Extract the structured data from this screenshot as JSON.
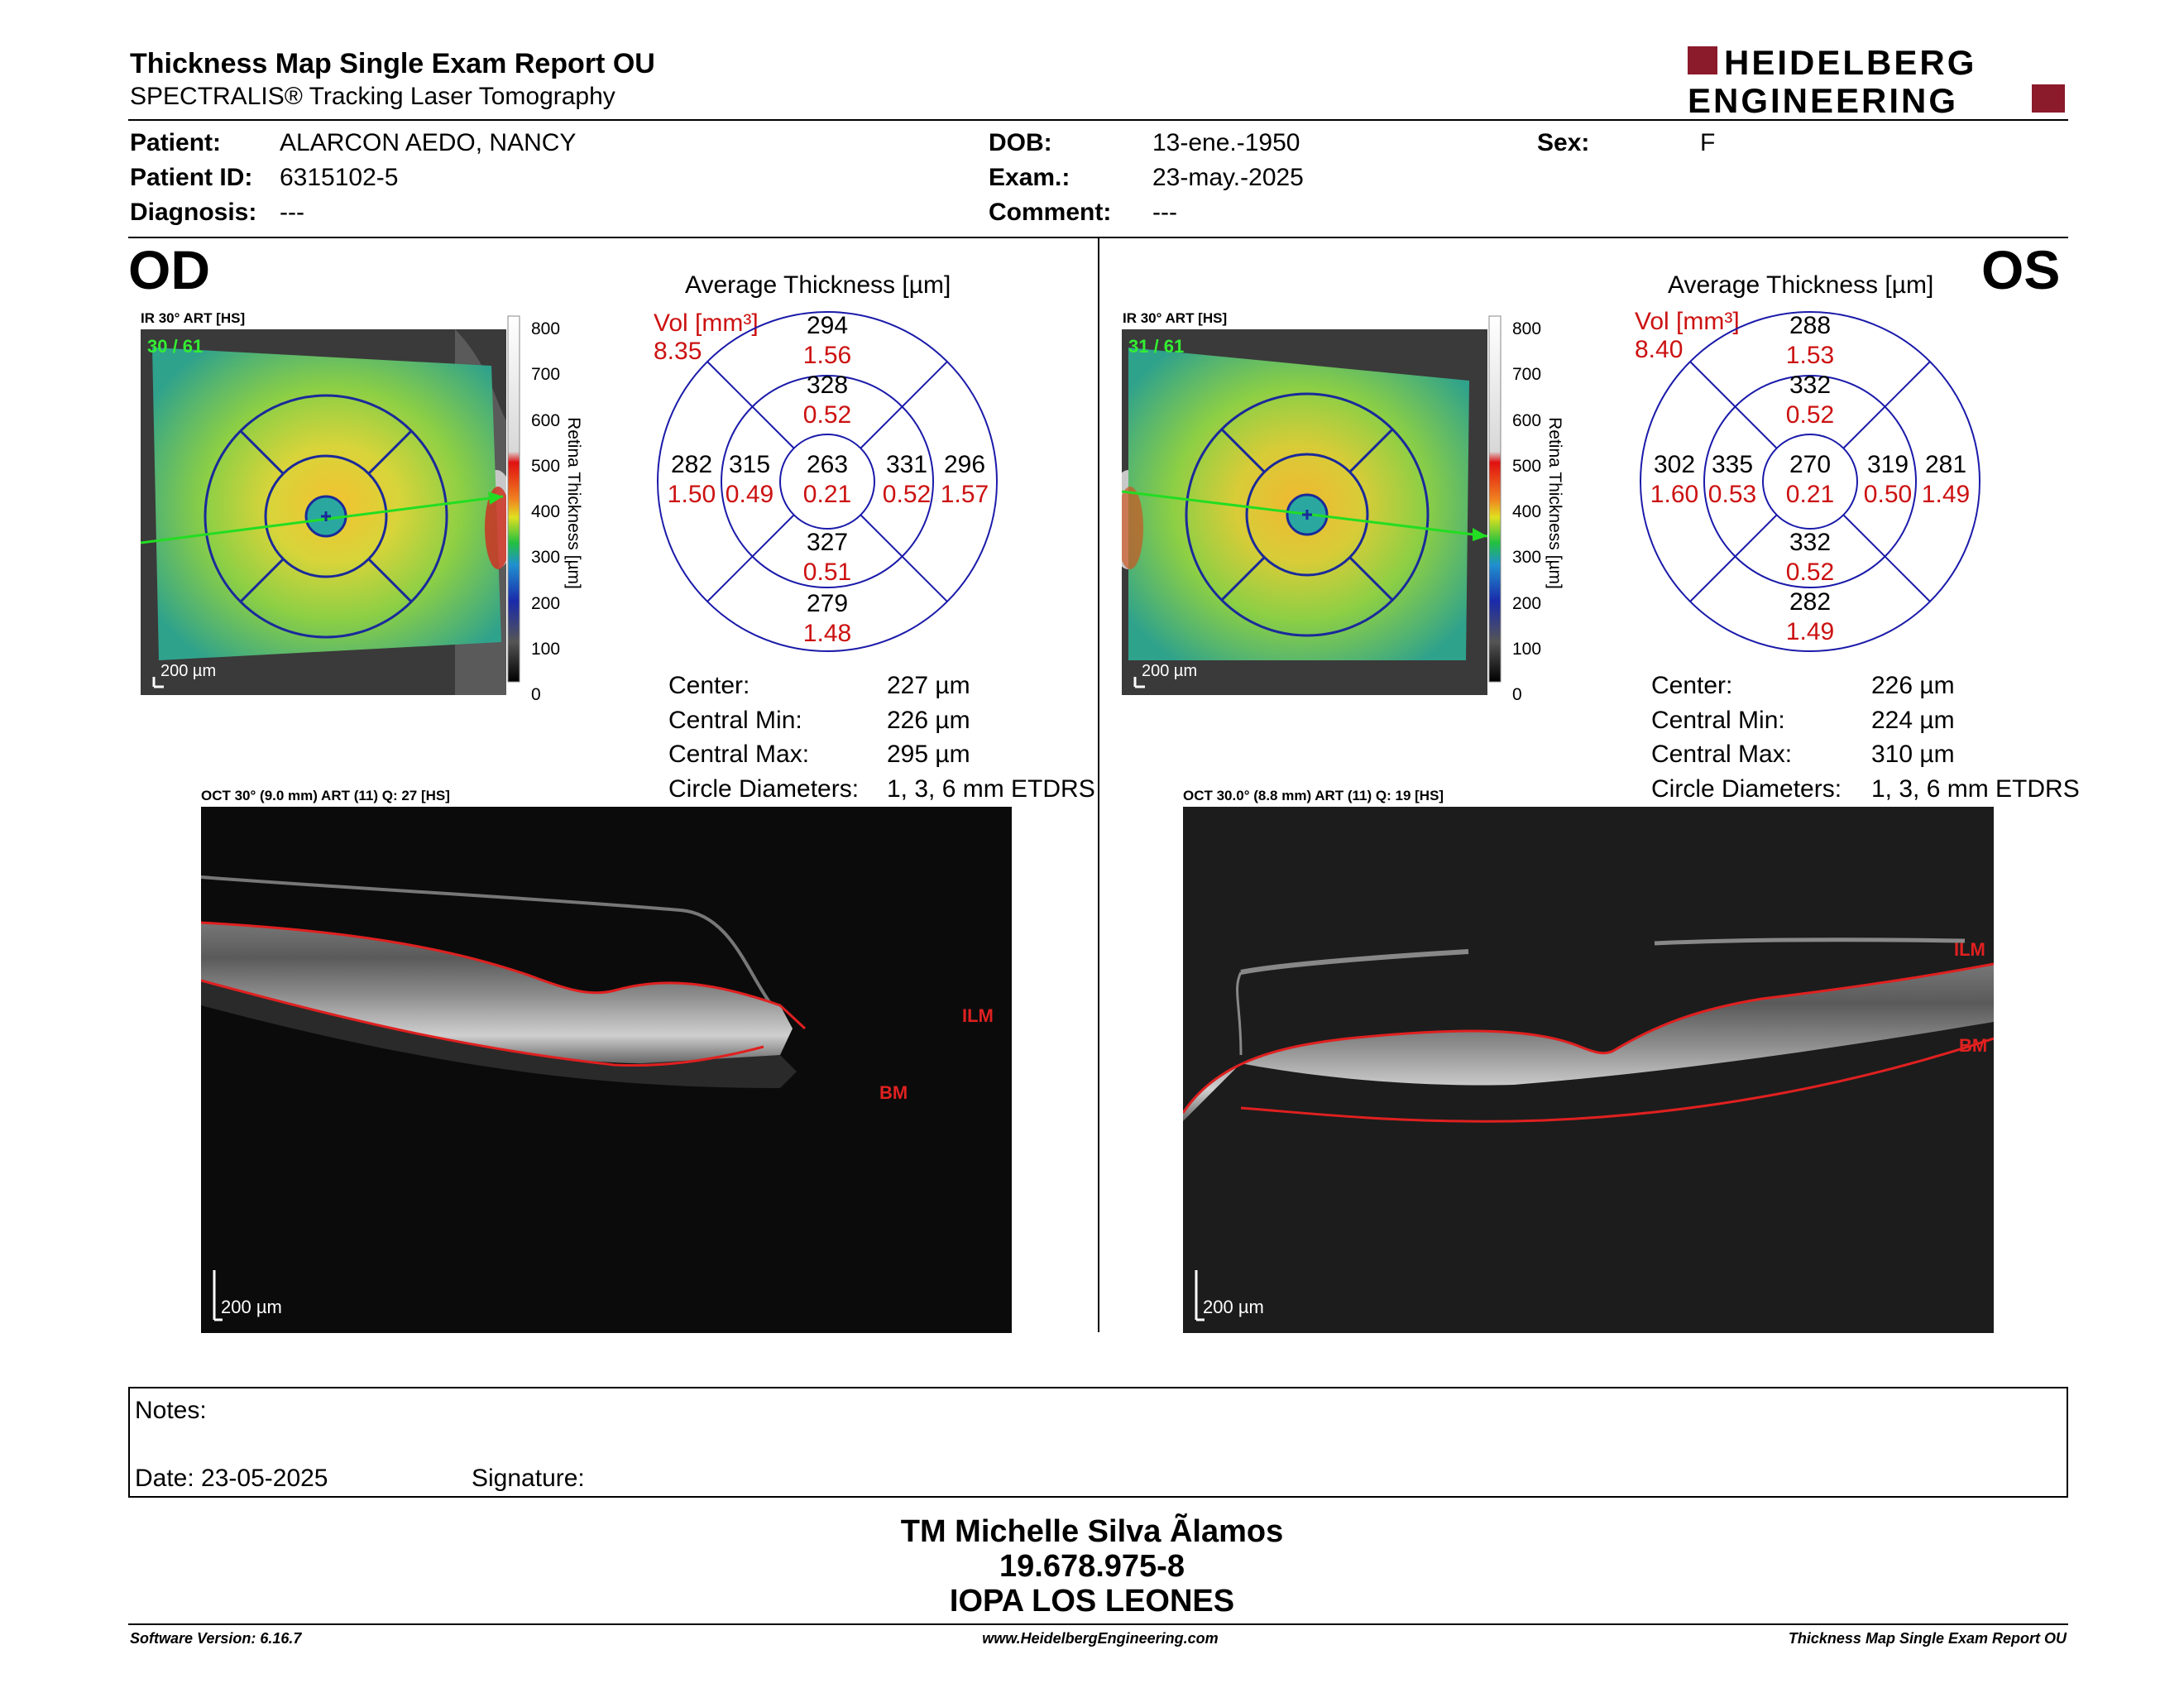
{
  "header": {
    "title": "Thickness Map Single Exam Report OU",
    "subtitle": "SPECTRALIS® Tracking Laser Tomography",
    "logo_line1": "HEIDELBERG",
    "logo_line2": "ENGINEERING",
    "brand_color": "#8b1a2b"
  },
  "patient": {
    "patient_label": "Patient:",
    "patient_value": "ALARCON AEDO, NANCY",
    "id_label": "Patient ID:",
    "id_value": "6315102-5",
    "diag_label": "Diagnosis:",
    "diag_value": "---",
    "dob_label": "DOB:",
    "dob_value": "13-ene.-1950",
    "exam_label": "Exam.:",
    "exam_value": "23-may.-2025",
    "comment_label": "Comment:",
    "comment_value": "---",
    "sex_label": "Sex:",
    "sex_value": "F"
  },
  "scale": {
    "ticks": [
      "800",
      "700",
      "600",
      "500",
      "400",
      "300",
      "200",
      "100",
      "0"
    ],
    "label": "Retina Thickness [µm]"
  },
  "od": {
    "eye": "OD",
    "ir_label": "IR 30° ART [HS]",
    "frames": "30 / 61",
    "scalebar": "200 µm",
    "avg_title": "Average Thickness [µm]",
    "vol_label": "Vol [mm³]",
    "vol_value": "8.35",
    "etdrs": {
      "center": [
        "263",
        "0.21"
      ],
      "inner_sup": [
        "328",
        "0.52"
      ],
      "inner_inf": [
        "327",
        "0.51"
      ],
      "inner_left": [
        "315",
        "0.49"
      ],
      "inner_right": [
        "331",
        "0.52"
      ],
      "outer_sup": [
        "294",
        "1.56"
      ],
      "outer_inf": [
        "279",
        "1.48"
      ],
      "outer_left": [
        "282",
        "1.50"
      ],
      "outer_right": [
        "296",
        "1.57"
      ]
    },
    "stats": [
      [
        "Center:",
        "227 µm"
      ],
      [
        "Central Min:",
        "226 µm"
      ],
      [
        "Central Max:",
        "295 µm"
      ],
      [
        "Circle Diameters:",
        "1, 3, 6 mm ETDRS"
      ]
    ],
    "oct_label": "OCT 30° (9.0 mm) ART (11) Q: 27 [HS]",
    "ilm": "ILM",
    "bm": "BM",
    "oct_scalebar": "200 µm"
  },
  "os": {
    "eye": "OS",
    "ir_label": "IR 30° ART [HS]",
    "frames": "31 / 61",
    "scalebar": "200 µm",
    "avg_title": "Average Thickness [µm]",
    "vol_label": "Vol [mm³]",
    "vol_value": "8.40",
    "etdrs": {
      "center": [
        "270",
        "0.21"
      ],
      "inner_sup": [
        "332",
        "0.52"
      ],
      "inner_inf": [
        "332",
        "0.52"
      ],
      "inner_left": [
        "335",
        "0.53"
      ],
      "inner_right": [
        "319",
        "0.50"
      ],
      "outer_sup": [
        "288",
        "1.53"
      ],
      "outer_inf": [
        "282",
        "1.49"
      ],
      "outer_left": [
        "302",
        "1.60"
      ],
      "outer_right": [
        "281",
        "1.49"
      ]
    },
    "stats": [
      [
        "Center:",
        "226 µm"
      ],
      [
        "Central Min:",
        "224 µm"
      ],
      [
        "Central Max:",
        "310 µm"
      ],
      [
        "Circle Diameters:",
        "1, 3, 6 mm ETDRS"
      ]
    ],
    "oct_label": "OCT 30.0° (8.8 mm) ART (11) Q: 19 [HS]",
    "ilm": "ILM",
    "bm": "BM",
    "oct_scalebar": "200 µm"
  },
  "notes": {
    "notes_label": "Notes:",
    "date_label": "Date: 23-05-2025",
    "signature_label": "Signature:"
  },
  "signature": {
    "name": "TM Michelle Silva Ãlamos",
    "rut": "19.678.975-8",
    "institution": "IOPA LOS LEONES"
  },
  "footer": {
    "software": "Software Version: 6.16.7",
    "website": "www.HeidelbergEngineering.com",
    "report": "Thickness Map Single Exam Report OU"
  }
}
